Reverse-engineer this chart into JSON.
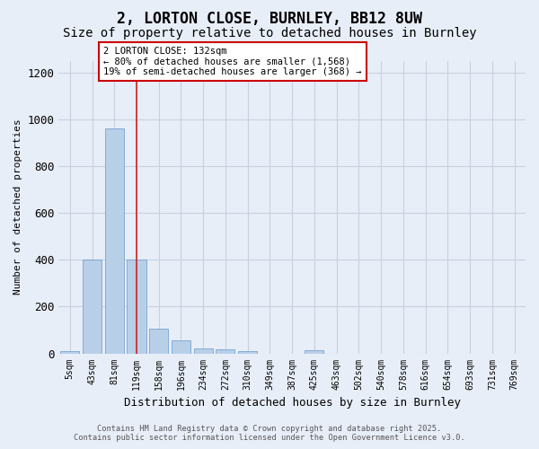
{
  "title": "2, LORTON CLOSE, BURNLEY, BB12 8UW",
  "subtitle": "Size of property relative to detached houses in Burnley",
  "xlabel": "Distribution of detached houses by size in Burnley",
  "ylabel": "Number of detached properties",
  "categories": [
    "5sqm",
    "43sqm",
    "81sqm",
    "119sqm",
    "158sqm",
    "196sqm",
    "234sqm",
    "272sqm",
    "310sqm",
    "349sqm",
    "387sqm",
    "425sqm",
    "463sqm",
    "502sqm",
    "540sqm",
    "578sqm",
    "616sqm",
    "654sqm",
    "693sqm",
    "731sqm",
    "769sqm"
  ],
  "values": [
    10,
    400,
    960,
    400,
    105,
    55,
    22,
    17,
    10,
    0,
    0,
    12,
    0,
    0,
    0,
    0,
    0,
    0,
    0,
    0,
    0
  ],
  "bar_color": "#b8cfe8",
  "bar_edge_color": "#6699cc",
  "background_color": "#e8eef8",
  "grid_color": "#c8d0e0",
  "red_line_x": 3.0,
  "annotation_text": "2 LORTON CLOSE: 132sqm\n← 80% of detached houses are smaller (1,568)\n19% of semi-detached houses are larger (368) →",
  "annotation_box_color": "#ffffff",
  "annotation_box_edge": "#cc0000",
  "ylim": [
    0,
    1250
  ],
  "yticks": [
    0,
    200,
    400,
    600,
    800,
    1000,
    1200
  ],
  "footer_line1": "Contains HM Land Registry data © Crown copyright and database right 2025.",
  "footer_line2": "Contains public sector information licensed under the Open Government Licence v3.0.",
  "title_fontsize": 12,
  "subtitle_fontsize": 10
}
